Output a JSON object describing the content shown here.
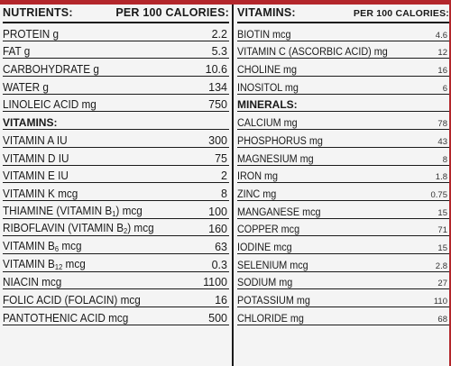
{
  "left_column": {
    "header": {
      "title": "NUTRIENTS:",
      "per": "PER 100 CALORIES:"
    },
    "rows": [
      {
        "name": "PROTEIN g",
        "value": "2.2"
      },
      {
        "name": "FAT g",
        "value": "5.3"
      },
      {
        "name": "CARBOHYDRATE g",
        "value": "10.6"
      },
      {
        "name": "WATER g",
        "value": "134"
      },
      {
        "name": "LINOLEIC ACID mg",
        "value": "750"
      }
    ],
    "section": "VITAMINS:",
    "vitamins": [
      {
        "name": "VITAMIN A IU",
        "value": "300"
      },
      {
        "name": "VITAMIN D IU",
        "value": "75"
      },
      {
        "name": "VITAMIN E IU",
        "value": "2"
      },
      {
        "name": "VITAMIN K mcg",
        "value": "8"
      },
      {
        "pre": "THIAMINE (VITAMIN B",
        "sub": "1",
        "post": ") mcg",
        "value": "100"
      },
      {
        "pre": "RIBOFLAVIN (VITAMIN B",
        "sub": "2",
        "post": ") mcg",
        "value": "160"
      },
      {
        "pre": "VITAMIN B",
        "sub": "6",
        "post": " mcg",
        "value": "63"
      },
      {
        "pre": "VITAMIN B",
        "sub": "12",
        "post": " mcg",
        "value": "0.3"
      },
      {
        "name": "NIACIN mcg",
        "value": "1100"
      },
      {
        "name": "FOLIC ACID (FOLACIN) mcg",
        "value": "16"
      },
      {
        "name": "PANTOTHENIC ACID mcg",
        "value": "500"
      }
    ]
  },
  "right_column": {
    "header": {
      "title": "VITAMINS:",
      "per": "PER 100 CALORIES:"
    },
    "vitamins": [
      {
        "name": "BIOTIN mcg",
        "value": "4.6"
      },
      {
        "name": "VITAMIN C (ASCORBIC ACID) mg",
        "value": "12"
      },
      {
        "name": "CHOLINE mg",
        "value": "16"
      },
      {
        "name": "INOSITOL mg",
        "value": "6"
      }
    ],
    "section": "MINERALS:",
    "minerals": [
      {
        "name": "CALCIUM mg",
        "value": "78"
      },
      {
        "name": "PHOSPHORUS mg",
        "value": "43"
      },
      {
        "name": "MAGNESIUM mg",
        "value": "8"
      },
      {
        "name": "IRON mg",
        "value": "1.8"
      },
      {
        "name": "ZINC mg",
        "value": "0.75"
      },
      {
        "name": "MANGANESE mcg",
        "value": "15"
      },
      {
        "name": "COPPER mcg",
        "value": "71"
      },
      {
        "name": "IODINE mcg",
        "value": "15"
      },
      {
        "name": "SELENIUM mcg",
        "value": "2.8"
      },
      {
        "name": "SODIUM mg",
        "value": "27"
      },
      {
        "name": "POTASSIUM mg",
        "value": "110"
      },
      {
        "name": "CHLORIDE mg",
        "value": "68"
      }
    ]
  },
  "colors": {
    "accent_red": "#b3262b",
    "ink": "#1a1a1a",
    "panel": "#f4f4f4"
  }
}
